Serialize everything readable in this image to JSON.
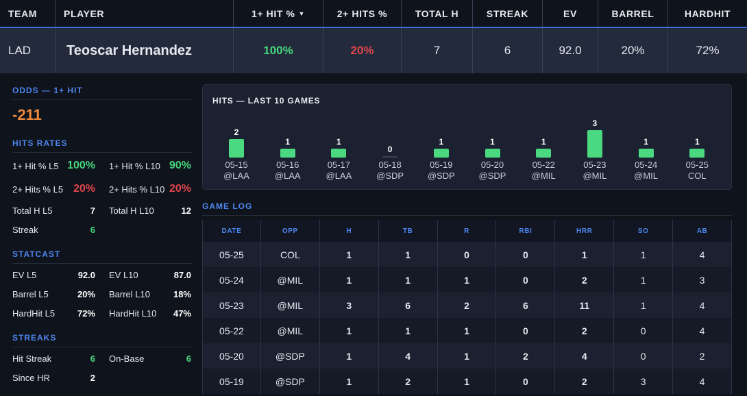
{
  "header": {
    "columns": [
      "TEAM",
      "PLAYER",
      "1+ HIT %",
      "2+ HITS %",
      "TOTAL H",
      "STREAK",
      "EV",
      "BARREL",
      "HARDHIT"
    ],
    "sort_icon": "caret-down-icon",
    "row": {
      "team": "LAD",
      "player": "Teoscar Hernandez",
      "hit1_pct": "100%",
      "hit2_pct": "20%",
      "total_h": "7",
      "streak": "6",
      "ev": "92.0",
      "barrel": "20%",
      "hardhit": "72%"
    }
  },
  "odds": {
    "title": "ODDS — 1+ HIT",
    "value": "-211"
  },
  "hits_rates": {
    "title": "HITS RATES",
    "items": [
      {
        "label": "1+ Hit % L5",
        "value": "100%",
        "color": "green"
      },
      {
        "label": "1+ Hit % L10",
        "value": "90%",
        "color": "green"
      },
      {
        "label": "2+ Hits % L5",
        "value": "20%",
        "color": "red"
      },
      {
        "label": "2+ Hits % L10",
        "value": "20%",
        "color": "red"
      },
      {
        "label": "Total H L5",
        "value": "7",
        "color": "white"
      },
      {
        "label": "Total H L10",
        "value": "12",
        "color": "white"
      },
      {
        "label": "Streak",
        "value": "6",
        "color": "green"
      }
    ]
  },
  "statcast": {
    "title": "STATCAST",
    "items": [
      {
        "label": "EV L5",
        "value": "92.0"
      },
      {
        "label": "EV L10",
        "value": "87.0"
      },
      {
        "label": "Barrel L5",
        "value": "20%"
      },
      {
        "label": "Barrel L10",
        "value": "18%"
      },
      {
        "label": "HardHit L5",
        "value": "72%"
      },
      {
        "label": "HardHit L10",
        "value": "47%"
      }
    ]
  },
  "streaks": {
    "title": "STREAKS",
    "items": [
      {
        "label": "Hit Streak",
        "value": "6",
        "color": "green"
      },
      {
        "label": "On-Base",
        "value": "6",
        "color": "green"
      },
      {
        "label": "Since HR",
        "value": "2",
        "color": "white"
      }
    ]
  },
  "chart_data": {
    "type": "bar",
    "title": "HITS — LAST 10 GAMES",
    "categories": [
      "05-15",
      "05-16",
      "05-17",
      "05-18",
      "05-19",
      "05-20",
      "05-22",
      "05-23",
      "05-24",
      "05-25"
    ],
    "opponents": [
      "@LAA",
      "@LAA",
      "@LAA",
      "@SDP",
      "@SDP",
      "@SDP",
      "@MIL",
      "@MIL",
      "@MIL",
      "COL"
    ],
    "values": [
      2,
      1,
      1,
      0,
      1,
      1,
      1,
      3,
      1,
      1
    ],
    "bar_color": "#4ad880"
  },
  "game_log": {
    "title": "GAME LOG",
    "columns": [
      "DATE",
      "OPP",
      "H",
      "TB",
      "R",
      "RBI",
      "HRR",
      "SO",
      "AB"
    ],
    "rows": [
      [
        "05-25",
        "COL",
        "1",
        "1",
        "0",
        "0",
        "1",
        "1",
        "4"
      ],
      [
        "05-24",
        "@MIL",
        "1",
        "1",
        "1",
        "0",
        "2",
        "1",
        "3"
      ],
      [
        "05-23",
        "@MIL",
        "3",
        "6",
        "2",
        "6",
        "11",
        "1",
        "4"
      ],
      [
        "05-22",
        "@MIL",
        "1",
        "1",
        "1",
        "0",
        "2",
        "0",
        "4"
      ],
      [
        "05-20",
        "@SDP",
        "1",
        "4",
        "1",
        "2",
        "4",
        "0",
        "2"
      ],
      [
        "05-19",
        "@SDP",
        "1",
        "2",
        "1",
        "0",
        "2",
        "3",
        "4"
      ]
    ],
    "colors": [
      [
        "white",
        "white",
        "green",
        "red",
        "red",
        "red",
        "red",
        "white",
        "white"
      ],
      [
        "white",
        "white",
        "green",
        "red",
        "green",
        "red",
        "green",
        "white",
        "white"
      ],
      [
        "white",
        "white",
        "green",
        "green",
        "green",
        "green",
        "green",
        "white",
        "white"
      ],
      [
        "white",
        "white",
        "green",
        "red",
        "green",
        "red",
        "green",
        "white",
        "white"
      ],
      [
        "white",
        "white",
        "green",
        "green",
        "green",
        "green",
        "green",
        "white",
        "white"
      ],
      [
        "white",
        "white",
        "green",
        "green",
        "green",
        "red",
        "green",
        "white",
        "white"
      ]
    ]
  }
}
